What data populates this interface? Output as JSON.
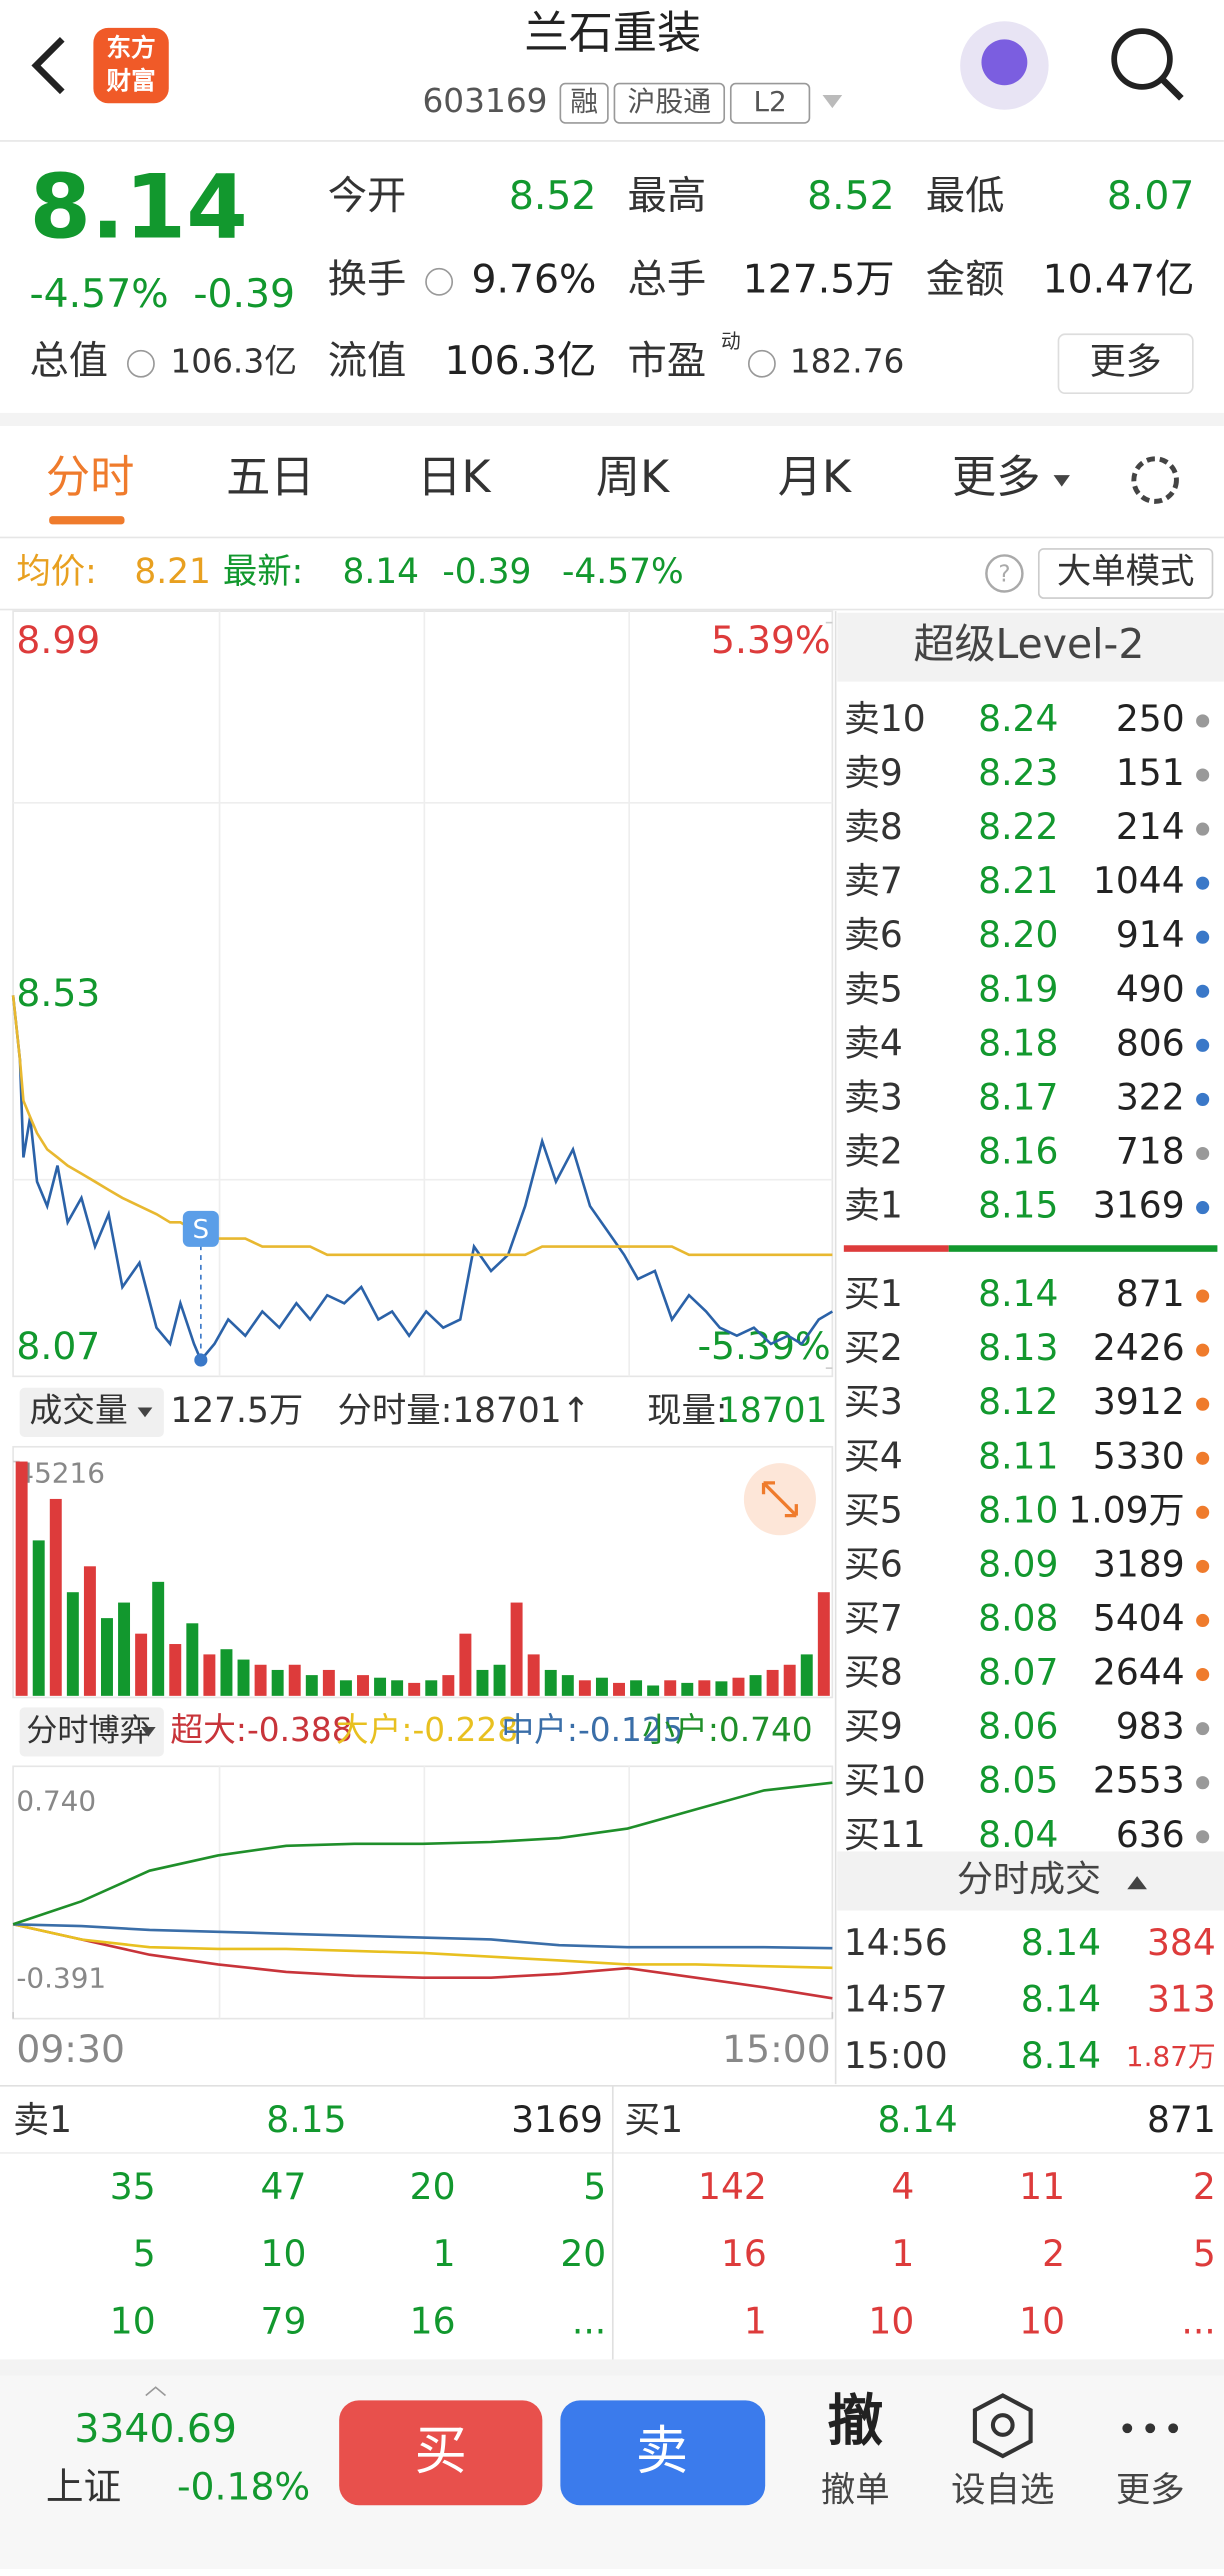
{
  "header": {
    "logo": [
      "东方",
      "财富"
    ],
    "title": "兰石重装",
    "code": "603169",
    "tags": [
      "融",
      "沪股通",
      "L2"
    ]
  },
  "quote": {
    "price": "8.14",
    "change_pct": "-4.57%",
    "change": "-0.39",
    "stats": [
      [
        "今开",
        "8.52"
      ],
      [
        "最高",
        "8.52"
      ],
      [
        "最低",
        "8.07"
      ],
      [
        "换手",
        "9.76%"
      ],
      [
        "总手",
        "127.5万"
      ],
      [
        "金额",
        "10.47亿"
      ]
    ],
    "total_cap": [
      "总值",
      "106.3亿"
    ],
    "float_cap": [
      "流值",
      "106.3亿"
    ],
    "pe": [
      "市盈",
      "动",
      "182.76"
    ],
    "more": "更多"
  },
  "tabs": [
    "分时",
    "五日",
    "日K",
    "周K",
    "月K",
    "更多"
  ],
  "info": {
    "avg_label": "均价:",
    "avg": "8.21",
    "last_label": "最新:",
    "last": "8.14",
    "change": "-0.39",
    "change_pct": "-4.57%",
    "button": "大单模式"
  },
  "chart_data": [
    {
      "type": "line",
      "ylim": [
        8.07,
        8.99
      ],
      "yticks": [
        8.99,
        8.53,
        8.07
      ],
      "y2lim": [
        -5.39,
        5.39
      ],
      "y2ticks": [
        {
          "value": 5.39,
          "label": "5.39%"
        },
        {
          "value": -5.39,
          "label": "-5.39%"
        }
      ],
      "xlim": [
        0,
        240
      ],
      "x": [
        0,
        2,
        3,
        5,
        7,
        10,
        13,
        16,
        20,
        24,
        28,
        32,
        37,
        42,
        46,
        49,
        53,
        55,
        59,
        63,
        68,
        73,
        78,
        83,
        87,
        92,
        97,
        102,
        107,
        111,
        116,
        121,
        126,
        131,
        135,
        140,
        145,
        150,
        155,
        159,
        164,
        169,
        174,
        179,
        183,
        188,
        193,
        198,
        203,
        207,
        212,
        217,
        222,
        227,
        231,
        236,
        240
      ],
      "series": [
        {
          "color": "#2b62a8",
          "values": [
            8.53,
            8.45,
            8.33,
            8.38,
            8.3,
            8.27,
            8.32,
            8.25,
            8.28,
            8.22,
            8.26,
            8.17,
            8.2,
            8.12,
            8.1,
            8.15,
            8.1,
            8.08,
            8.1,
            8.13,
            8.11,
            8.14,
            8.12,
            8.15,
            8.13,
            8.16,
            8.15,
            8.17,
            8.13,
            8.14,
            8.11,
            8.14,
            8.12,
            8.13,
            8.22,
            8.19,
            8.21,
            8.27,
            8.35,
            8.3,
            8.34,
            8.27,
            8.24,
            8.21,
            8.18,
            8.19,
            8.13,
            8.16,
            8.14,
            8.12,
            8.11,
            8.12,
            8.1,
            8.11,
            8.1,
            8.13,
            8.14
          ]
        },
        {
          "color": "#e8b830",
          "values": [
            8.53,
            8.45,
            8.4,
            8.38,
            8.36,
            8.34,
            8.33,
            8.32,
            8.31,
            8.3,
            8.29,
            8.28,
            8.27,
            8.26,
            8.25,
            8.25,
            8.24,
            8.24,
            8.23,
            8.23,
            8.23,
            8.22,
            8.22,
            8.22,
            8.22,
            8.21,
            8.21,
            8.21,
            8.21,
            8.21,
            8.21,
            8.21,
            8.21,
            8.21,
            8.21,
            8.21,
            8.21,
            8.21,
            8.22,
            8.22,
            8.22,
            8.22,
            8.22,
            8.22,
            8.22,
            8.22,
            8.22,
            8.21,
            8.21,
            8.21,
            8.21,
            8.21,
            8.21,
            8.21,
            8.21,
            8.21,
            8.21
          ]
        }
      ],
      "marker": {
        "label": "S",
        "x": 55,
        "value": 8.08
      }
    },
    {
      "type": "bar",
      "header": {
        "selector": "成交量",
        "total": "127.5万",
        "minute": "分时量:18701↑",
        "now_label": "现量:",
        "now": "18701"
      },
      "ylim": [
        0,
        45216
      ],
      "yticks": [
        45216
      ],
      "values": [
        45216,
        30000,
        38000,
        20000,
        25000,
        15000,
        18000,
        12000,
        22000,
        10000,
        14000,
        8000,
        9000,
        7000,
        6000,
        5000,
        6000,
        4000,
        5000,
        3000,
        4000,
        3500,
        3000,
        2500,
        3000,
        4000,
        12000,
        5000,
        6000,
        18000,
        8000,
        5000,
        4000,
        3000,
        3500,
        2500,
        3000,
        2000,
        3000,
        2500,
        3000,
        2800,
        3500,
        4000,
        5000,
        6000,
        8000,
        20000
      ],
      "up": [
        true,
        false,
        true,
        false,
        true,
        false,
        false,
        true,
        false,
        true,
        false,
        true,
        false,
        false,
        true,
        false,
        true,
        false,
        true,
        false,
        true,
        false,
        false,
        true,
        false,
        true,
        true,
        false,
        false,
        true,
        true,
        false,
        false,
        true,
        false,
        true,
        false,
        false,
        true,
        false,
        true,
        false,
        true,
        false,
        true,
        true,
        false,
        true
      ],
      "up_color": "#dd3b3b",
      "down_color": "#12982e"
    },
    {
      "type": "line",
      "header": {
        "selector": "分时博弈"
      },
      "legend_labels": [
        "超大:-0.388",
        "大户:-0.228",
        "中户:-0.125",
        "小户:0.740"
      ],
      "ylim": [
        -0.391,
        0.74
      ],
      "yticks": [
        {
          "value": 0.74,
          "label": "0.740"
        },
        -0.391
      ],
      "xlim": [
        0,
        240
      ],
      "xticks": [
        {
          "value": 0,
          "label": "09:30"
        },
        {
          "value": 240,
          "label": "15:00"
        }
      ],
      "x": [
        0,
        20,
        40,
        60,
        80,
        100,
        120,
        140,
        160,
        180,
        200,
        220,
        240
      ],
      "series": [
        {
          "color": "#c8343a",
          "values": [
            0,
            -0.08,
            -0.16,
            -0.21,
            -0.25,
            -0.27,
            -0.28,
            -0.28,
            -0.26,
            -0.23,
            -0.28,
            -0.33,
            -0.388
          ]
        },
        {
          "color": "#e8c020",
          "values": [
            0,
            -0.08,
            -0.12,
            -0.13,
            -0.13,
            -0.14,
            -0.15,
            -0.17,
            -0.19,
            -0.21,
            -0.21,
            -0.22,
            -0.228
          ]
        },
        {
          "color": "#3a6ea8",
          "values": [
            0,
            -0.01,
            -0.03,
            -0.04,
            -0.05,
            -0.06,
            -0.07,
            -0.08,
            -0.11,
            -0.12,
            -0.12,
            -0.12,
            -0.125
          ]
        },
        {
          "color": "#1f8f2a",
          "values": [
            0,
            0.12,
            0.28,
            0.36,
            0.41,
            0.42,
            0.42,
            0.43,
            0.45,
            0.5,
            0.6,
            0.7,
            0.74
          ]
        }
      ]
    }
  ],
  "level2": {
    "title": "超级Level-2",
    "asks": [
      [
        "卖10",
        "8.24",
        "250",
        "#999"
      ],
      [
        "卖9",
        "8.23",
        "151",
        "#999"
      ],
      [
        "卖8",
        "8.22",
        "214",
        "#999"
      ],
      [
        "卖7",
        "8.21",
        "1044",
        "#3a78c8"
      ],
      [
        "卖6",
        "8.20",
        "914",
        "#3a78c8"
      ],
      [
        "卖5",
        "8.19",
        "490",
        "#3a78c8"
      ],
      [
        "卖4",
        "8.18",
        "806",
        "#3a78c8"
      ],
      [
        "卖3",
        "8.17",
        "322",
        "#3a78c8"
      ],
      [
        "卖2",
        "8.16",
        "718",
        "#999"
      ],
      [
        "卖1",
        "8.15",
        "3169",
        "#3a78c8"
      ]
    ],
    "bids": [
      [
        "买1",
        "8.14",
        "871",
        "#ef7b2c"
      ],
      [
        "买2",
        "8.13",
        "2426",
        "#ef7b2c"
      ],
      [
        "买3",
        "8.12",
        "3912",
        "#ef7b2c"
      ],
      [
        "买4",
        "8.11",
        "5330",
        "#ef7b2c"
      ],
      [
        "买5",
        "8.10",
        "1.09万",
        "#ef7b2c"
      ],
      [
        "买6",
        "8.09",
        "3189",
        "#ef7b2c"
      ],
      [
        "买7",
        "8.08",
        "5404",
        "#ef7b2c"
      ],
      [
        "买8",
        "8.07",
        "2644",
        "#ef7b2c"
      ],
      [
        "买9",
        "8.06",
        "983",
        "#999"
      ],
      [
        "买10",
        "8.05",
        "2553",
        "#999"
      ],
      [
        "买11",
        "8.04",
        "636",
        "#999"
      ]
    ],
    "trades_title": "分时成交",
    "trades": [
      [
        "14:56",
        "8.14",
        "384"
      ],
      [
        "14:57",
        "8.14",
        "313"
      ],
      [
        "15:00",
        "8.14",
        "1.87万"
      ]
    ]
  },
  "queue": {
    "sell": {
      "label": "卖1",
      "price": "8.15",
      "volume": "3169",
      "rows": [
        [
          "35",
          "47",
          "20",
          "5"
        ],
        [
          "5",
          "10",
          "1",
          "20"
        ],
        [
          "10",
          "79",
          "16",
          "..."
        ]
      ]
    },
    "buy": {
      "label": "买1",
      "price": "8.14",
      "volume": "871",
      "rows": [
        [
          "142",
          "4",
          "11",
          "2"
        ],
        [
          "16",
          "1",
          "2",
          "5"
        ],
        [
          "1",
          "10",
          "10",
          "..."
        ]
      ]
    }
  },
  "footer": {
    "index_value": "3340.69",
    "index_name": "上证",
    "index_change": "-0.18%",
    "buy": "买",
    "sell": "卖",
    "cancel_icon": "撤",
    "cancel": "撤单",
    "watch": "设自选",
    "more": "更多"
  }
}
